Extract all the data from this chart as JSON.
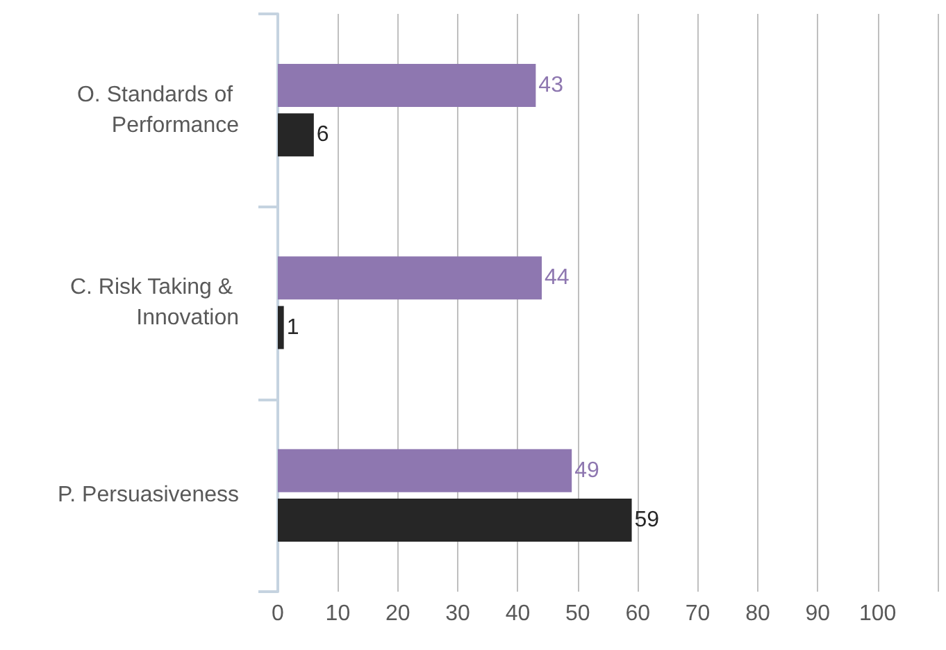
{
  "chart_data": {
    "type": "bar",
    "orientation": "horizontal",
    "categories": [
      "O. Standards of Performance",
      "C. Risk Taking & Innovation",
      "P. Persuasiveness"
    ],
    "series": [
      {
        "color": "#8e77b0",
        "values": [
          43,
          44,
          49
        ]
      },
      {
        "color": "#262626",
        "values": [
          6,
          1,
          59
        ]
      }
    ],
    "xlim": [
      0,
      110
    ],
    "xticks": [
      0,
      10,
      20,
      30,
      40,
      50,
      60,
      70,
      80,
      90,
      100,
      {
        "value": 110,
        "label": null
      }
    ],
    "grid": "x",
    "data_labels": true
  }
}
